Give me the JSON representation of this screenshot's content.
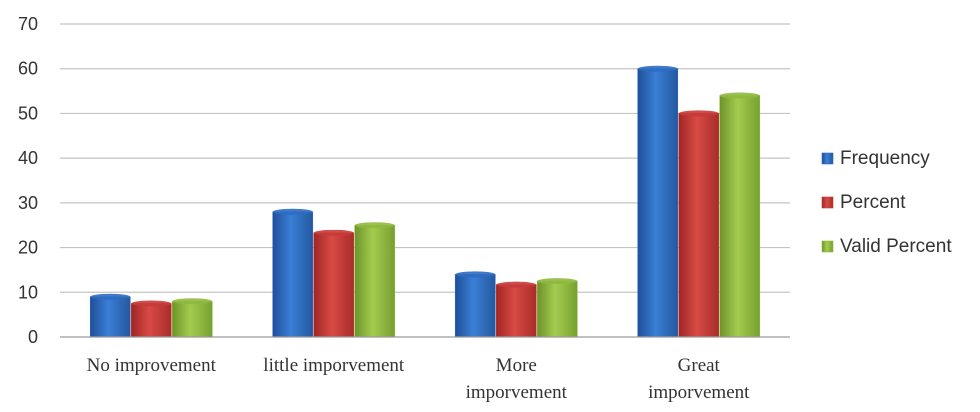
{
  "chart_data": {
    "type": "bar",
    "title": "",
    "xlabel": "",
    "ylabel": "",
    "categories": [
      [
        "No improvement"
      ],
      [
        "little imporvement"
      ],
      [
        "More",
        "imporvement"
      ],
      [
        "Great",
        "imporvement"
      ]
    ],
    "series": [
      {
        "name": "Frequency",
        "values": [
          9,
          28,
          14,
          60
        ],
        "color": "#2e6cc2"
      },
      {
        "name": "Percent",
        "values": [
          7.5,
          23.3,
          11.7,
          50
        ],
        "color": "#c63a38"
      },
      {
        "name": "Valid Percent",
        "values": [
          8,
          25,
          12.5,
          54
        ],
        "color": "#8fb93e"
      }
    ],
    "ylim": [
      0,
      70
    ],
    "yticks": [
      0,
      10,
      20,
      30,
      40,
      50,
      60,
      70
    ],
    "grid": true,
    "legend": "right"
  }
}
